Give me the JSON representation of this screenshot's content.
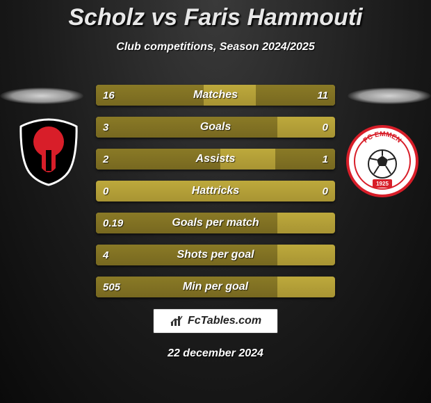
{
  "title": "Scholz vs Faris Hammouti",
  "subtitle": "Club competitions, Season 2024/2025",
  "date": "22 december 2024",
  "footer_brand": "FcTables.com",
  "colors": {
    "bar_base": "#bda93c",
    "bar_fill": "#8a7a26",
    "text": "#ffffff",
    "title": "#e8e8e8",
    "bg_dark": "#0a0a0a"
  },
  "bars": [
    {
      "label": "Matches",
      "left_val": "16",
      "right_val": "11",
      "left_pct": 45,
      "right_pct": 33
    },
    {
      "label": "Goals",
      "left_val": "3",
      "right_val": "0",
      "left_pct": 76,
      "right_pct": 0
    },
    {
      "label": "Assists",
      "left_val": "2",
      "right_val": "1",
      "left_pct": 52,
      "right_pct": 25
    },
    {
      "label": "Hattricks",
      "left_val": "0",
      "right_val": "0",
      "left_pct": 0,
      "right_pct": 0
    },
    {
      "label": "Goals per match",
      "left_val": "0.19",
      "right_val": "",
      "left_pct": 76,
      "right_pct": 0
    },
    {
      "label": "Shots per goal",
      "left_val": "4",
      "right_val": "",
      "left_pct": 76,
      "right_pct": 0
    },
    {
      "label": "Min per goal",
      "left_val": "505",
      "right_val": "",
      "left_pct": 76,
      "right_pct": 0
    }
  ],
  "logo_left": {
    "name": "helmond-sport",
    "bg": "#000000",
    "accent": "#d81e29"
  },
  "logo_right": {
    "name": "fc-emmen",
    "bg": "#ffffff",
    "accent": "#d81e29",
    "text": "FC EMMEN",
    "year": "1925"
  }
}
